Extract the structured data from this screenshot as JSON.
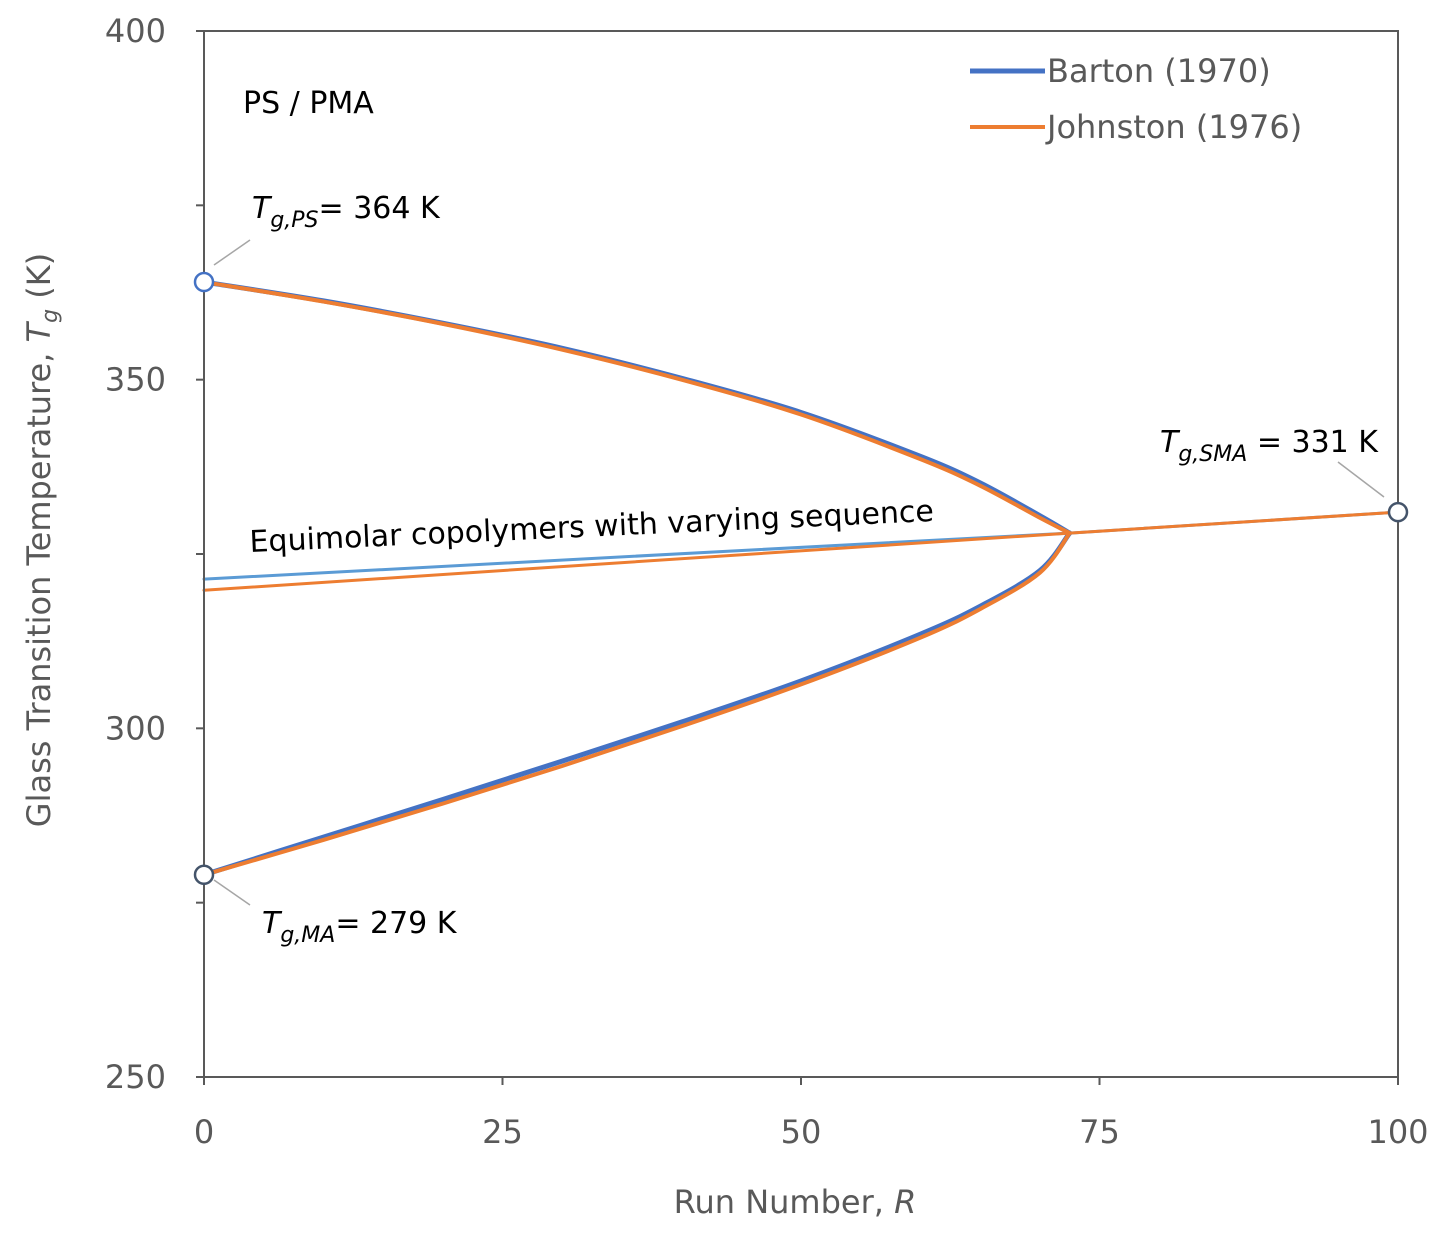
{
  "chart_data": {
    "type": "line",
    "panel_label": "PS / PMA",
    "xlabel": {
      "text": "Run Number, ",
      "var": "R"
    },
    "ylabel": {
      "text": "Glass Transition Temperature, ",
      "var": "T",
      "sub": "g",
      "unit": " (K)"
    },
    "xlim": [
      0,
      100
    ],
    "ylim": [
      250,
      400
    ],
    "x_ticks": [
      "0",
      "25",
      "50",
      "75",
      "100"
    ],
    "y_ticks": [
      "250",
      "300",
      "350",
      "400"
    ],
    "grid": false,
    "legend_position": "top-right",
    "colors": {
      "barton": "#4472C4",
      "johnston": "#ED7D31",
      "barton_equimolar": "#5B9BD5",
      "axis": "#595959"
    },
    "series": [
      {
        "name": "Barton (1970)",
        "key": "barton",
        "upper_branch": {
          "x": [
            0,
            10,
            20,
            30,
            40,
            50,
            60,
            65,
            70,
            72.5
          ],
          "y": [
            364,
            361.3,
            358.1,
            354.5,
            350.2,
            345.3,
            339.0,
            335.2,
            330.5,
            328
          ]
        },
        "lower_branch": {
          "x": [
            0,
            10,
            20,
            30,
            40,
            50,
            60,
            65,
            70,
            72.5
          ],
          "y": [
            279,
            284.4,
            289.8,
            295.3,
            300.9,
            306.8,
            313.5,
            317.5,
            322.6,
            328
          ]
        },
        "equimolar": {
          "x": [
            0,
            72.5,
            100
          ],
          "y": [
            321.4,
            328,
            331
          ]
        }
      },
      {
        "name": "Johnston (1976)",
        "key": "johnston",
        "upper_branch": {
          "x": [
            0,
            10,
            20,
            30,
            40,
            50,
            60,
            65,
            70,
            72.5
          ],
          "y": [
            364,
            361.2,
            358.0,
            354.3,
            350.0,
            345.0,
            338.6,
            334.8,
            330.2,
            328
          ]
        },
        "lower_branch": {
          "x": [
            0,
            10,
            20,
            30,
            40,
            50,
            60,
            65,
            70,
            72.5
          ],
          "y": [
            279,
            284.0,
            289.2,
            294.6,
            300.3,
            306.3,
            313.0,
            317.1,
            322.3,
            328
          ]
        },
        "equimolar": {
          "x": [
            0,
            72.5,
            100
          ],
          "y": [
            319.8,
            328,
            331
          ]
        }
      }
    ],
    "endpoints": [
      {
        "key": "ps",
        "x": 0,
        "y": 364,
        "stroke": "#4472C4",
        "label_T": "T",
        "label_sub": "g,PS",
        "label_value": "=  364 K"
      },
      {
        "key": "ma",
        "x": 0,
        "y": 279,
        "stroke": "#44546A",
        "label_T": "T",
        "label_sub": "g,MA",
        "label_value": "=  279 K"
      },
      {
        "key": "sma",
        "x": 100,
        "y": 331,
        "stroke": "#44546A",
        "label_T": "T",
        "label_sub": "g,SMA",
        "label_value": " =  331 K"
      }
    ],
    "annotations": {
      "equimolar_label": "Equimolar copolymers with varying sequence"
    }
  }
}
